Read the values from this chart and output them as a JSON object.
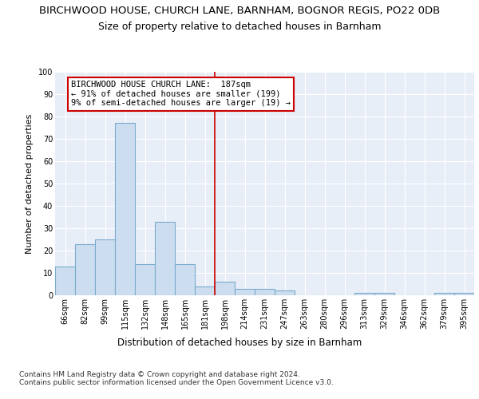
{
  "title": "BIRCHWOOD HOUSE, CHURCH LANE, BARNHAM, BOGNOR REGIS, PO22 0DB",
  "subtitle": "Size of property relative to detached houses in Barnham",
  "xlabel": "Distribution of detached houses by size in Barnham",
  "ylabel": "Number of detached properties",
  "bin_labels": [
    "66sqm",
    "82sqm",
    "99sqm",
    "115sqm",
    "132sqm",
    "148sqm",
    "165sqm",
    "181sqm",
    "198sqm",
    "214sqm",
    "231sqm",
    "247sqm",
    "263sqm",
    "280sqm",
    "296sqm",
    "313sqm",
    "329sqm",
    "346sqm",
    "362sqm",
    "379sqm",
    "395sqm"
  ],
  "bar_values": [
    13,
    23,
    25,
    77,
    14,
    33,
    14,
    4,
    6,
    3,
    3,
    2,
    0,
    0,
    0,
    1,
    1,
    0,
    0,
    1,
    1
  ],
  "bar_color": "#ccddef",
  "bar_edgecolor": "#7aabcc",
  "bar_linewidth": 0.8,
  "red_line_x": 7.5,
  "annotation_text": "BIRCHWOOD HOUSE CHURCH LANE:  187sqm\n← 91% of detached houses are smaller (199)\n9% of semi-detached houses are larger (19) →",
  "annotation_box_color": "#ffffff",
  "annotation_box_edgecolor": "#cc0000",
  "ylim": [
    0,
    100
  ],
  "yticks": [
    0,
    10,
    20,
    30,
    40,
    50,
    60,
    70,
    80,
    90,
    100
  ],
  "background_color": "#e8eef8",
  "grid_color": "#ffffff",
  "footer_text": "Contains HM Land Registry data © Crown copyright and database right 2024.\nContains public sector information licensed under the Open Government Licence v3.0.",
  "title_fontsize": 9.5,
  "subtitle_fontsize": 9,
  "ylabel_fontsize": 8,
  "xlabel_fontsize": 8.5,
  "tick_fontsize": 7,
  "annotation_fontsize": 7.5,
  "footer_fontsize": 6.5
}
